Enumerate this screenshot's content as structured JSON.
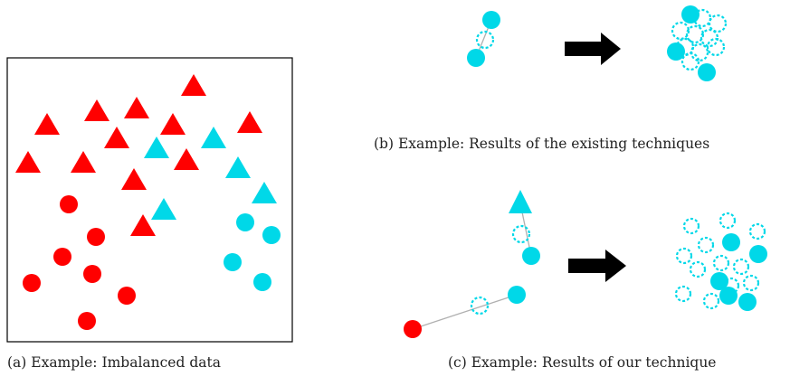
{
  "captions": {
    "a": "(a) Example: Imbalanced data",
    "b": "(b) Example: Results of the existing techniques",
    "c": "(c) Example: Results of our technique"
  },
  "colors": {
    "majority": "#ff0000",
    "minority": "#00d8e8",
    "arrow": "#000000",
    "line": "#b0b0b0"
  }
}
